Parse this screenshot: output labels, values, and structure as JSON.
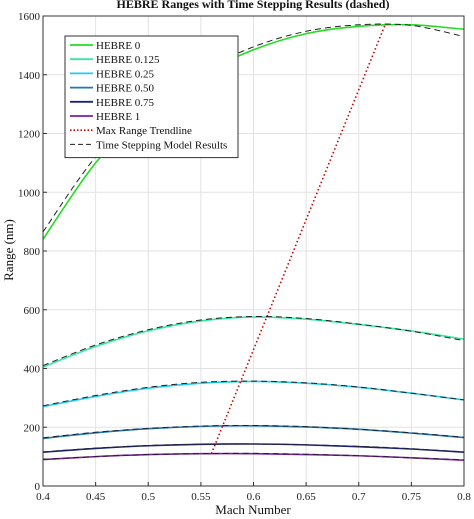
{
  "chart_data": {
    "type": "line",
    "title": "HEBRE Ranges with Time Stepping Results (dashed)",
    "xlabel": "Mach Number",
    "ylabel": "Range (nm)",
    "xlim": [
      0.4,
      0.8
    ],
    "ylim": [
      0,
      1600
    ],
    "xticks": [
      "0.4",
      "0.45",
      "0.5",
      "0.55",
      "0.6",
      "0.65",
      "0.7",
      "0.75",
      "0.8"
    ],
    "yticks": [
      "0",
      "200",
      "400",
      "600",
      "800",
      "1000",
      "1200",
      "1400",
      "1600"
    ],
    "grid": true,
    "legend_position": "top-left",
    "x": [
      0.4,
      0.45,
      0.5,
      0.55,
      0.6,
      0.65,
      0.7,
      0.75,
      0.8
    ],
    "series": [
      {
        "name": "HEBRE 0",
        "color": "#22dd22",
        "style": "solid",
        "values": [
          840,
          1100,
          1280,
          1400,
          1485,
          1540,
          1565,
          1570,
          1555
        ]
      },
      {
        "name": "HEBRE 0.125",
        "color": "#33e8a0",
        "style": "solid",
        "values": [
          405,
          475,
          528,
          562,
          575,
          568,
          550,
          528,
          500
        ]
      },
      {
        "name": "HEBRE 0.25",
        "color": "#22ccee",
        "style": "solid",
        "values": [
          270,
          305,
          333,
          350,
          356,
          350,
          336,
          316,
          293
        ]
      },
      {
        "name": "HEBRE 0.50",
        "color": "#1f77b4",
        "style": "solid",
        "values": [
          162,
          181,
          195,
          203,
          205,
          201,
          193,
          180,
          165
        ]
      },
      {
        "name": "HEBRE 0.75",
        "color": "#1a237e",
        "style": "solid",
        "values": [
          115,
          128,
          137,
          142,
          143,
          140,
          134,
          126,
          115
        ]
      },
      {
        "name": "HEBRE 1",
        "color": "#7b1fa2",
        "style": "solid",
        "values": [
          90,
          100,
          107,
          110,
          110,
          107,
          103,
          96,
          88
        ]
      }
    ],
    "time_stepping_series": [
      {
        "values": [
          865,
          1120,
          1290,
          1410,
          1495,
          1548,
          1570,
          1568,
          1530
        ]
      },
      {
        "values": [
          410,
          480,
          532,
          565,
          577,
          570,
          551,
          527,
          495
        ]
      },
      {
        "values": [
          273,
          308,
          336,
          353,
          357,
          351,
          337,
          316,
          293
        ]
      },
      {
        "values": [
          164,
          183,
          196,
          204,
          206,
          202,
          193,
          181,
          166
        ]
      },
      {
        "values": [
          116,
          129,
          138,
          142,
          143,
          140,
          135,
          127,
          116
        ]
      },
      {
        "values": [
          91,
          100,
          107,
          110,
          111,
          108,
          103,
          96,
          89
        ]
      }
    ],
    "time_stepping_name": "Time Stepping Model Results",
    "trendline": {
      "name": "Max Range Trendline",
      "color": "#cc0000",
      "x": [
        0.56,
        0.725
      ],
      "y": [
        110,
        1570
      ]
    }
  }
}
